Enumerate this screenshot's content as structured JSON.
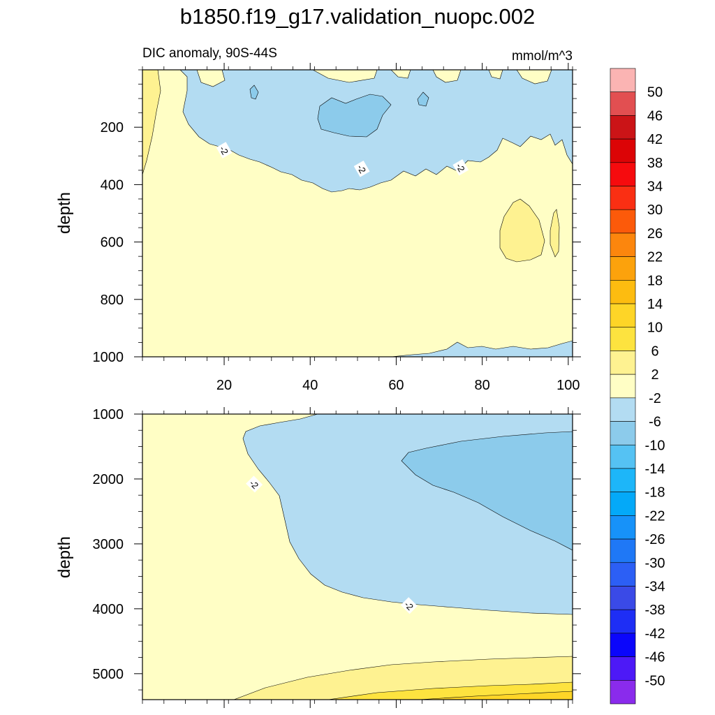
{
  "figure": {
    "title": "b1850.f19_g17.validation_nuopc.002",
    "left_subtitle": "DIC anomaly, 90S-44S",
    "right_subtitle": "mmol/m^3"
  },
  "chart_data": [
    {
      "type": "heatmap",
      "panel": "upper",
      "ylabel": "depth",
      "xlabel": "",
      "xlim": [
        1,
        101
      ],
      "ylim": [
        1000,
        0
      ],
      "x_ticks": [
        20,
        40,
        60,
        80,
        100
      ],
      "y_ticks": [
        200,
        400,
        600,
        800,
        1000
      ],
      "contour_labels": [
        {
          "text": "-2",
          "x": 20,
          "y": 280
        },
        {
          "text": "-2",
          "x": 52,
          "y": 345
        },
        {
          "text": "-2",
          "x": 75,
          "y": 340
        }
      ]
    },
    {
      "type": "heatmap",
      "panel": "lower",
      "ylabel": "depth",
      "xlabel": "",
      "xlim": [
        1,
        101
      ],
      "ylim": [
        5400,
        1000
      ],
      "x_ticks": [
        20,
        40,
        60,
        80,
        100
      ],
      "y_ticks": [
        1000,
        2000,
        3000,
        4000,
        5000
      ],
      "contour_labels": [
        {
          "text": "-2",
          "x": 27,
          "y": 2080
        },
        {
          "text": "-2",
          "x": 63,
          "y": 3950
        }
      ]
    }
  ],
  "colorbar": {
    "labels": [
      "50",
      "46",
      "42",
      "38",
      "34",
      "30",
      "26",
      "22",
      "18",
      "14",
      "10",
      "6",
      "2",
      "-2",
      "-6",
      "-10",
      "-14",
      "-18",
      "-22",
      "-26",
      "-30",
      "-34",
      "-38",
      "-42",
      "-46",
      "-50"
    ],
    "colors": [
      "#fbb4b3",
      "#e24f51",
      "#cb1417",
      "#dc0406",
      "#f60b0e",
      "#fa2f13",
      "#fc5a0a",
      "#fc860d",
      "#fca20c",
      "#fdbc10",
      "#fed527",
      "#fde33f",
      "#fef291",
      "#fffec5",
      "#b3dcf2",
      "#8ccbeb",
      "#55c2f3",
      "#1db6f9",
      "#04a9f8",
      "#1792f9",
      "#1f78f6",
      "#2c5ff5",
      "#3a4ae7",
      "#1e2ef5",
      "#0b06fb",
      "#4d19f7",
      "#8a2bec"
    ]
  }
}
